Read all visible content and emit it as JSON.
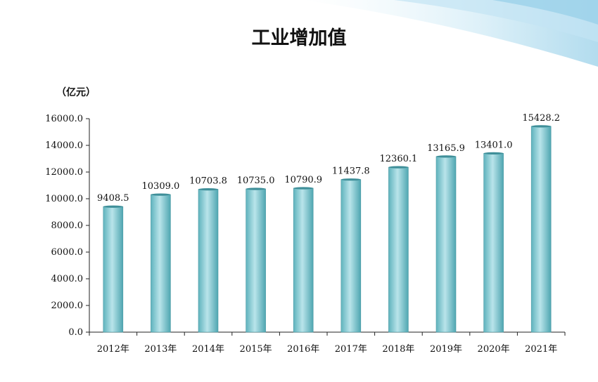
{
  "chart_data": {
    "type": "bar",
    "title": "工业增加值",
    "ylabel": "（亿元）",
    "xlabel": "",
    "categories": [
      "2012年",
      "2013年",
      "2014年",
      "2015年",
      "2016年",
      "2017年",
      "2018年",
      "2019年",
      "2020年",
      "2021年"
    ],
    "values": [
      9408.5,
      10309.0,
      10703.8,
      10735.0,
      10790.9,
      11437.8,
      12360.1,
      13165.9,
      13401.0,
      15428.2
    ],
    "data_labels": [
      "9408.5",
      "10309.0",
      "10703.8",
      "10735.0",
      "10790.9",
      "11437.8",
      "12360.1",
      "13165.9",
      "13401.0",
      "15428.2"
    ],
    "ylim": [
      0,
      16000
    ],
    "yticks": [
      "0.0",
      "2000.0",
      "4000.0",
      "6000.0",
      "8000.0",
      "10000.0",
      "12000.0",
      "14000.0",
      "16000.0"
    ],
    "grid": false,
    "bar_color": "#7cc6cf"
  }
}
